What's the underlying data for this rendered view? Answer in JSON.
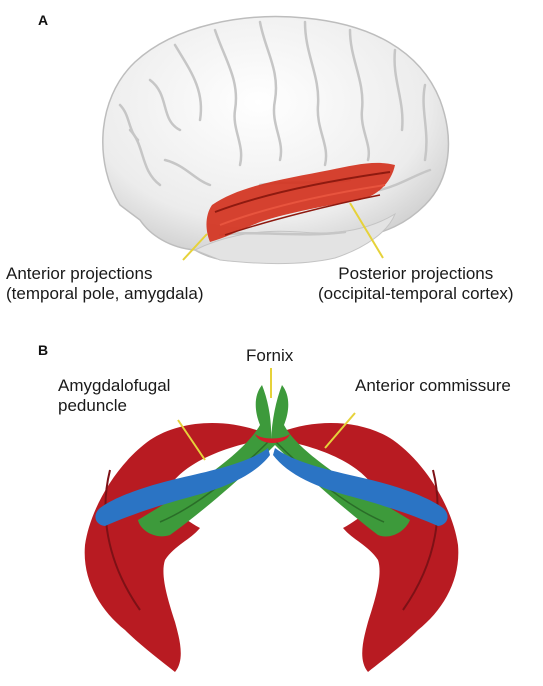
{
  "panel_a": {
    "letter": "A",
    "labels": {
      "anterior_line1": "Anterior  projections",
      "anterior_line2": "(temporal pole, amygdala)",
      "posterior_line1": "Posterior projections",
      "posterior_line2": "(occipital-temporal cortex)"
    }
  },
  "panel_b": {
    "letter": "B",
    "labels": {
      "fornix": "Fornix",
      "amygdalofugal_line1": "Amygdalofugal",
      "amygdalofugal_line2": "peduncle",
      "anterior_commissure": "Anterior commissure"
    }
  },
  "colors": {
    "brain": "#eeeeee",
    "tract_a": "#d3321e",
    "red_tract": "#b81b22",
    "blue_tract": "#2b74c4",
    "green_tract": "#3d9a3b",
    "pointer": "#e6d23a"
  }
}
